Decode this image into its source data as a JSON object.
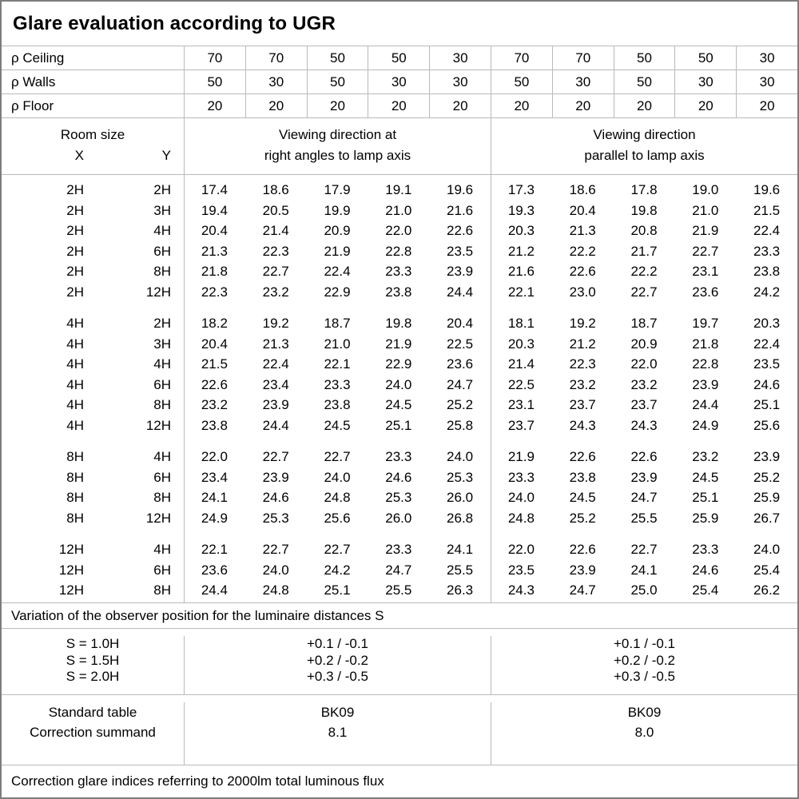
{
  "title": "Glare evaluation according to UGR",
  "colors": {
    "text": "#000000",
    "background": "#ffffff",
    "grid_line": "#b9b9b9",
    "outer_border": "#7d7d7d"
  },
  "reflectances": {
    "rows": [
      {
        "label": "ρ Ceiling",
        "values": [
          "70",
          "70",
          "50",
          "50",
          "30",
          "70",
          "70",
          "50",
          "50",
          "30"
        ]
      },
      {
        "label": "ρ Walls",
        "values": [
          "50",
          "30",
          "50",
          "30",
          "30",
          "50",
          "30",
          "50",
          "30",
          "30"
        ]
      },
      {
        "label": "ρ Floor",
        "values": [
          "20",
          "20",
          "20",
          "20",
          "20",
          "20",
          "20",
          "20",
          "20",
          "20"
        ]
      }
    ]
  },
  "header": {
    "room_size_label": "Room size",
    "x_label": "X",
    "y_label": "Y",
    "group1_line1": "Viewing direction at",
    "group1_line2": "right angles to lamp axis",
    "group2_line1": "Viewing direction",
    "group2_line2": "parallel to lamp axis"
  },
  "ugr_table": {
    "blocks": [
      {
        "rows": [
          {
            "x": "2H",
            "y": "2H",
            "values": [
              "17.4",
              "18.6",
              "17.9",
              "19.1",
              "19.6",
              "17.3",
              "18.6",
              "17.8",
              "19.0",
              "19.6"
            ]
          },
          {
            "x": "2H",
            "y": "3H",
            "values": [
              "19.4",
              "20.5",
              "19.9",
              "21.0",
              "21.6",
              "19.3",
              "20.4",
              "19.8",
              "21.0",
              "21.5"
            ]
          },
          {
            "x": "2H",
            "y": "4H",
            "values": [
              "20.4",
              "21.4",
              "20.9",
              "22.0",
              "22.6",
              "20.3",
              "21.3",
              "20.8",
              "21.9",
              "22.4"
            ]
          },
          {
            "x": "2H",
            "y": "6H",
            "values": [
              "21.3",
              "22.3",
              "21.9",
              "22.8",
              "23.5",
              "21.2",
              "22.2",
              "21.7",
              "22.7",
              "23.3"
            ]
          },
          {
            "x": "2H",
            "y": "8H",
            "values": [
              "21.8",
              "22.7",
              "22.4",
              "23.3",
              "23.9",
              "21.6",
              "22.6",
              "22.2",
              "23.1",
              "23.8"
            ]
          },
          {
            "x": "2H",
            "y": "12H",
            "values": [
              "22.3",
              "23.2",
              "22.9",
              "23.8",
              "24.4",
              "22.1",
              "23.0",
              "22.7",
              "23.6",
              "24.2"
            ]
          }
        ]
      },
      {
        "rows": [
          {
            "x": "4H",
            "y": "2H",
            "values": [
              "18.2",
              "19.2",
              "18.7",
              "19.8",
              "20.4",
              "18.1",
              "19.2",
              "18.7",
              "19.7",
              "20.3"
            ]
          },
          {
            "x": "4H",
            "y": "3H",
            "values": [
              "20.4",
              "21.3",
              "21.0",
              "21.9",
              "22.5",
              "20.3",
              "21.2",
              "20.9",
              "21.8",
              "22.4"
            ]
          },
          {
            "x": "4H",
            "y": "4H",
            "values": [
              "21.5",
              "22.4",
              "22.1",
              "22.9",
              "23.6",
              "21.4",
              "22.3",
              "22.0",
              "22.8",
              "23.5"
            ]
          },
          {
            "x": "4H",
            "y": "6H",
            "values": [
              "22.6",
              "23.4",
              "23.3",
              "24.0",
              "24.7",
              "22.5",
              "23.2",
              "23.2",
              "23.9",
              "24.6"
            ]
          },
          {
            "x": "4H",
            "y": "8H",
            "values": [
              "23.2",
              "23.9",
              "23.8",
              "24.5",
              "25.2",
              "23.1",
              "23.7",
              "23.7",
              "24.4",
              "25.1"
            ]
          },
          {
            "x": "4H",
            "y": "12H",
            "values": [
              "23.8",
              "24.4",
              "24.5",
              "25.1",
              "25.8",
              "23.7",
              "24.3",
              "24.3",
              "24.9",
              "25.6"
            ]
          }
        ]
      },
      {
        "rows": [
          {
            "x": "8H",
            "y": "4H",
            "values": [
              "22.0",
              "22.7",
              "22.7",
              "23.3",
              "24.0",
              "21.9",
              "22.6",
              "22.6",
              "23.2",
              "23.9"
            ]
          },
          {
            "x": "8H",
            "y": "6H",
            "values": [
              "23.4",
              "23.9",
              "24.0",
              "24.6",
              "25.3",
              "23.3",
              "23.8",
              "23.9",
              "24.5",
              "25.2"
            ]
          },
          {
            "x": "8H",
            "y": "8H",
            "values": [
              "24.1",
              "24.6",
              "24.8",
              "25.3",
              "26.0",
              "24.0",
              "24.5",
              "24.7",
              "25.1",
              "25.9"
            ]
          },
          {
            "x": "8H",
            "y": "12H",
            "values": [
              "24.9",
              "25.3",
              "25.6",
              "26.0",
              "26.8",
              "24.8",
              "25.2",
              "25.5",
              "25.9",
              "26.7"
            ]
          }
        ]
      },
      {
        "rows": [
          {
            "x": "12H",
            "y": "4H",
            "values": [
              "22.1",
              "22.7",
              "22.7",
              "23.3",
              "24.1",
              "22.0",
              "22.6",
              "22.7",
              "23.3",
              "24.0"
            ]
          },
          {
            "x": "12H",
            "y": "6H",
            "values": [
              "23.6",
              "24.0",
              "24.2",
              "24.7",
              "25.5",
              "23.5",
              "23.9",
              "24.1",
              "24.6",
              "25.4"
            ]
          },
          {
            "x": "12H",
            "y": "8H",
            "values": [
              "24.4",
              "24.8",
              "25.1",
              "25.5",
              "26.3",
              "24.3",
              "24.7",
              "25.0",
              "25.4",
              "26.2"
            ]
          }
        ]
      }
    ]
  },
  "variation_note": "Variation of the observer position for the luminaire distances S",
  "spacing_section": {
    "labels": [
      "S = 1.0H",
      "S = 1.5H",
      "S = 2.0H"
    ],
    "group1_values": [
      "+0.1 / -0.1",
      "+0.2 / -0.2",
      "+0.3 / -0.5"
    ],
    "group2_values": [
      "+0.1 / -0.1",
      "+0.2 / -0.2",
      "+0.3 / -0.5"
    ]
  },
  "standard_section": {
    "labels": [
      "Standard table",
      "Correction summand"
    ],
    "group1_values": [
      "BK09",
      "8.1"
    ],
    "group2_values": [
      "BK09",
      "8.0"
    ]
  },
  "footer_note": "Correction glare indices referring to 2000lm total luminous flux"
}
